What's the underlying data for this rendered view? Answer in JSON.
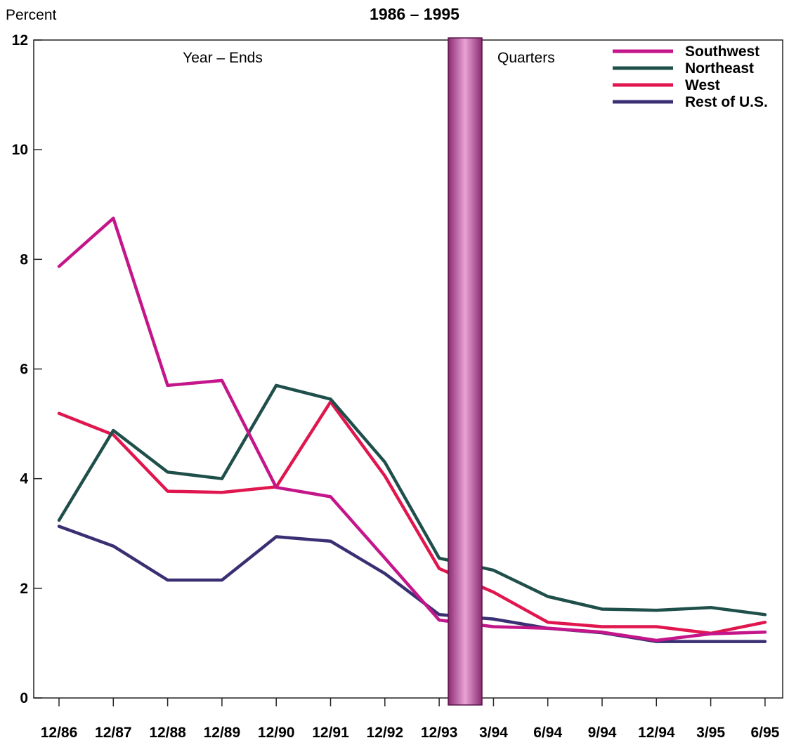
{
  "chart_data": {
    "type": "line",
    "title": "1986  –  1995",
    "ylabel": "Percent",
    "xlabel": "",
    "ylim": [
      0,
      12
    ],
    "yticks": [
      "0",
      "2",
      "4",
      "6",
      "8",
      "10",
      "12"
    ],
    "categories": [
      "12/86",
      "12/87",
      "12/88",
      "12/89",
      "12/90",
      "12/91",
      "12/92",
      "12/93",
      "3/94",
      "6/94",
      "9/94",
      "12/94",
      "3/95",
      "6/95"
    ],
    "annotations": {
      "year_ends": "Year – Ends",
      "quarters": "Quarters"
    },
    "legend_position": "top-right",
    "grid": false,
    "series": [
      {
        "name": "Southwest",
        "color": "#c4168a",
        "values": [
          7.87,
          8.75,
          5.7,
          5.79,
          3.84,
          3.67,
          2.55,
          1.42,
          1.3,
          1.27,
          1.2,
          1.05,
          1.17,
          1.2
        ]
      },
      {
        "name": "Northeast",
        "color": "#1f4f4a",
        "values": [
          3.24,
          4.88,
          4.12,
          4.0,
          5.7,
          5.45,
          4.3,
          2.55,
          2.33,
          1.85,
          1.62,
          1.6,
          1.65,
          1.52
        ]
      },
      {
        "name": "West",
        "color": "#e0174f",
        "values": [
          5.19,
          4.8,
          3.77,
          3.75,
          3.85,
          5.4,
          4.05,
          2.36,
          1.93,
          1.38,
          1.3,
          1.3,
          1.18,
          1.38
        ]
      },
      {
        "name": "Rest of U.S.",
        "color": "#3a2f73",
        "values": [
          3.13,
          2.77,
          2.15,
          2.15,
          2.94,
          2.86,
          2.27,
          1.52,
          1.44,
          1.27,
          1.19,
          1.03,
          1.03,
          1.03
        ]
      }
    ]
  }
}
